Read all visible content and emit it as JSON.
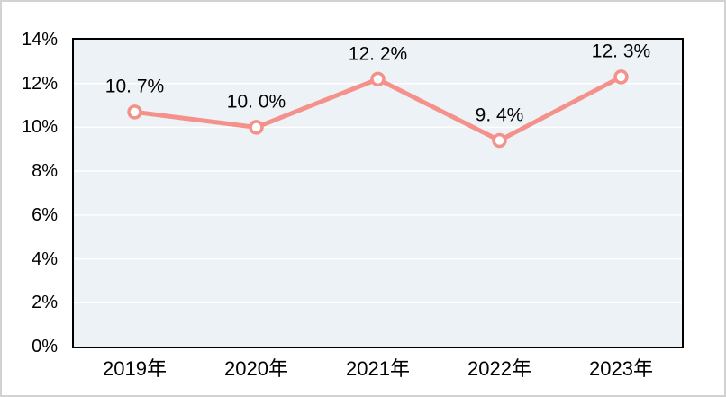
{
  "chart_data": {
    "type": "line",
    "categories": [
      "2019年",
      "2020年",
      "2021年",
      "2022年",
      "2023年"
    ],
    "series": [
      {
        "values": [
          10.7,
          10.0,
          12.2,
          9.4,
          12.3
        ],
        "point_labels": [
          "10. 7%",
          "10. 0%",
          "12. 2%",
          "9. 4%",
          "12. 3%"
        ]
      }
    ],
    "yticks": [
      "0%",
      "2%",
      "4%",
      "6%",
      "8%",
      "10%",
      "12%",
      "14%"
    ],
    "ylim": [
      0,
      14
    ],
    "ytick_step": 2,
    "grid": true,
    "legend": false,
    "data_labels_position": "above",
    "colors": {
      "line": "#f5918b",
      "marker_fill": "#ffffff",
      "marker_stroke": "#f5918b",
      "plot_background": "#ecf2f6",
      "gridline": "#ffffff",
      "plot_border": "#000000",
      "text": "#000000",
      "canvas_background": "#ffffff",
      "canvas_border": "#d2d2d2"
    }
  }
}
